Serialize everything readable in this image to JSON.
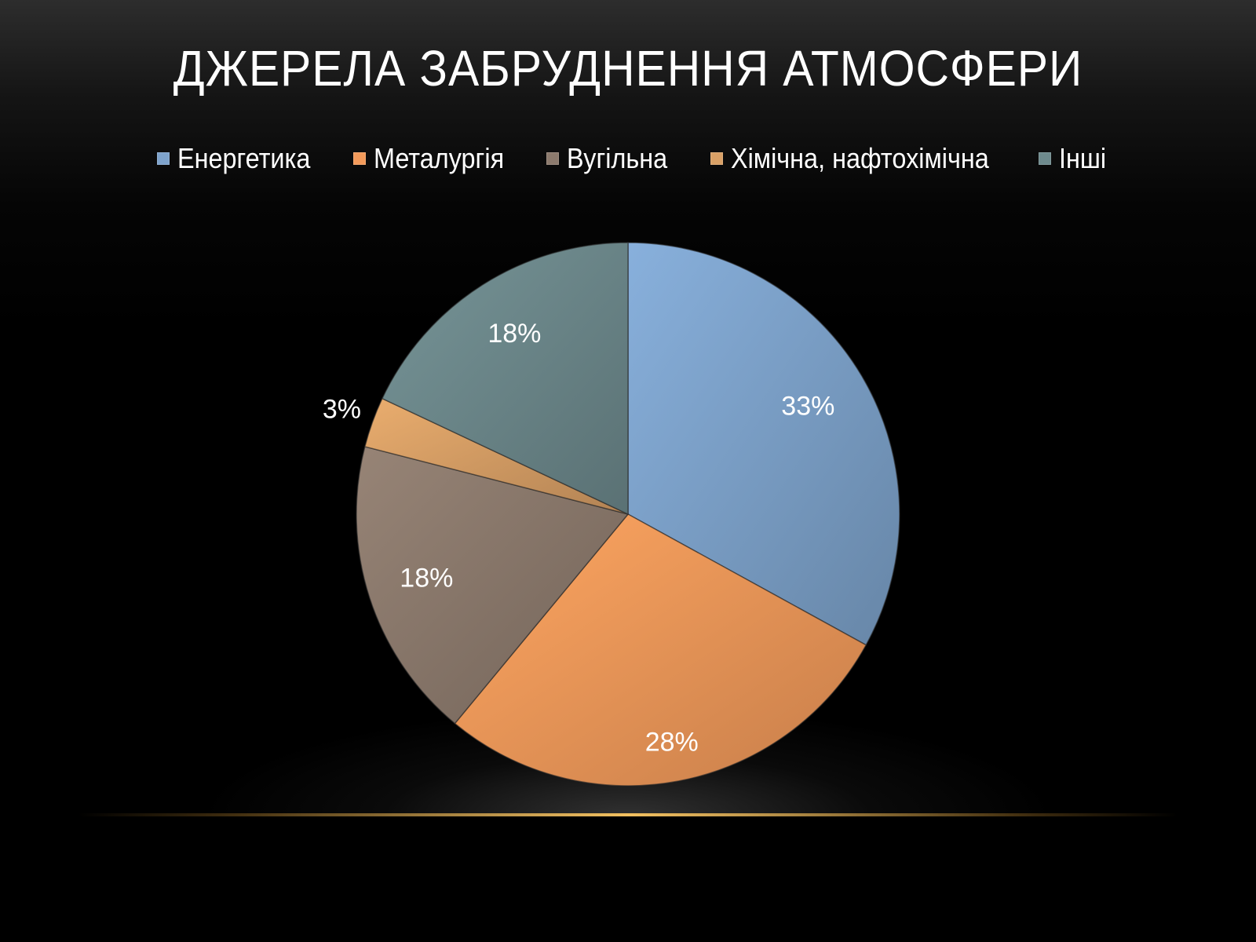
{
  "title": "ДЖЕРЕЛА ЗАБРУДНЕННЯ АТМОСФЕРИ",
  "chart_data": {
    "type": "pie",
    "title": "ДЖЕРЕЛА ЗАБРУДНЕННЯ АТМОСФЕРИ",
    "legend_position": "top",
    "categories": [
      "Енергетика",
      "Металургія",
      "Вугільна",
      "Хімічна, нафтохімічна",
      "Інші"
    ],
    "values": [
      33,
      28,
      18,
      3,
      18
    ],
    "labels": [
      "33%",
      "28%",
      "18%",
      "3%",
      "18%"
    ],
    "colors": [
      "#7ea3cc",
      "#f39a5a",
      "#8c7a6d",
      "#d9a066",
      "#6e8a8d"
    ]
  }
}
